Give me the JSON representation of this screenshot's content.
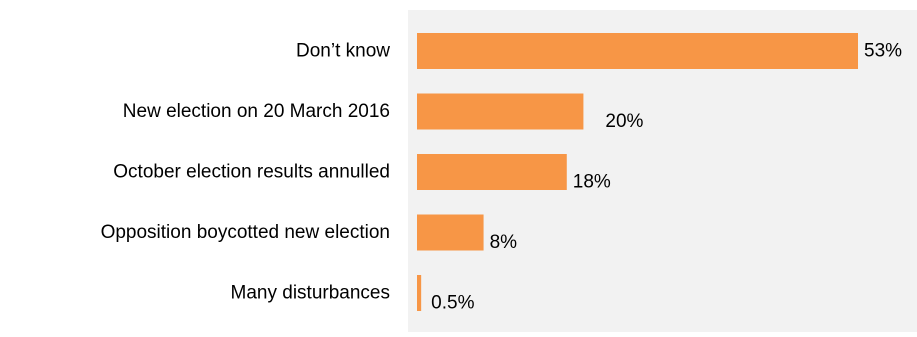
{
  "chart_data": {
    "type": "bar",
    "orientation": "horizontal",
    "categories": [
      "Don’t know",
      "New election on 20 March 2016",
      "October election results annulled",
      "Opposition boycotted new election",
      "Many disturbances"
    ],
    "values": [
      53,
      20,
      18,
      8,
      0.5
    ],
    "data_labels": [
      "53%",
      "20%",
      "18%",
      "8%",
      "0.5%"
    ],
    "xlim": [
      0,
      53
    ],
    "grid": false,
    "legend": "none",
    "colors": {
      "bar": "#F79646",
      "plot_background": "#F2F2F2",
      "text": "#000000"
    }
  }
}
